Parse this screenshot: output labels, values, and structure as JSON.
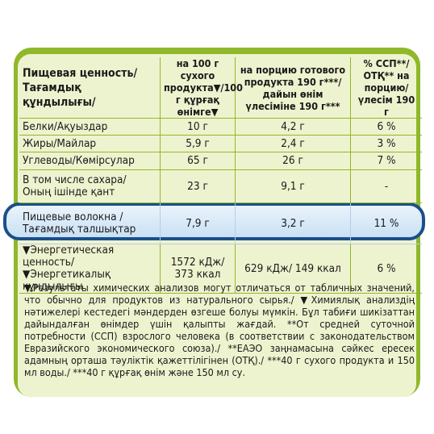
{
  "colors": {
    "panel": "#8fb82a",
    "inner": "#eef3cf",
    "highlight_border": "#1b4f8a"
  },
  "header": {
    "col1_line1": "Пищевая ценность/",
    "col1_line2": "Тағамдық құндылығы/",
    "col2": "на 100 г сухого продукта▼/100 г құрғақ өнімге▼",
    "col3": "на порцию готового продукта 190 г***/дайын өнім үлесіміне 190 г***",
    "col4": "% ССП**/ОТҚ** на порцию/ үлесім 190 г"
  },
  "rows": [
    {
      "name": "Белки/Ақуыздар",
      "per100": "10 г",
      "portion": "4,2 г",
      "percent": "6 %"
    },
    {
      "name": "Жиры/Майлар",
      "per100": "5,9 г",
      "portion": "2,4 г",
      "percent": "3 %"
    },
    {
      "name": "Углеводы/Көмірсулар",
      "per100": "65 г",
      "portion": "26 г",
      "percent": "7 %"
    },
    {
      "name": "В том числе сахара/ Оның ішінде қант",
      "per100": "23 г",
      "portion": "9,1 г",
      "percent": "-"
    },
    {
      "name": "Пищевые волокна / Тағамдық талшықтар",
      "per100": "7,9 г",
      "portion": "3,2 г",
      "percent": "11 %"
    },
    {
      "name": "▼Энергетическая ценность/ ▼Энергетикалық құндылығы",
      "per100": "1572 кДж/ 373 ккал",
      "portion": "629 кДж/ 149 ккал",
      "percent": "6 %"
    }
  ],
  "footnote": "▼Результаты химических анализов могут отличаться от табличных значений, что обычно для продуктов из натурального сырья./ ▼Химиялық анализдің нәтижелері кестедегі мәндерден өзгеше болуы мүмкін. Бұл табиғи шикізаттан дайындалған өнімдер үшін қалыпты жағдай. **От средней суточной потребности (ССП) взрослого человека (в соответствии с законодательством Евразийского экономического союза)./ **ЕАЭО заңнамасына сәйкес ересек адамның орташа тәуліктік қажеттілігінен (ОТҚ)./ ***40 г сухого продукта и 150 мл воды./ ***40 г құрғақ өнім және 150 мл су."
}
